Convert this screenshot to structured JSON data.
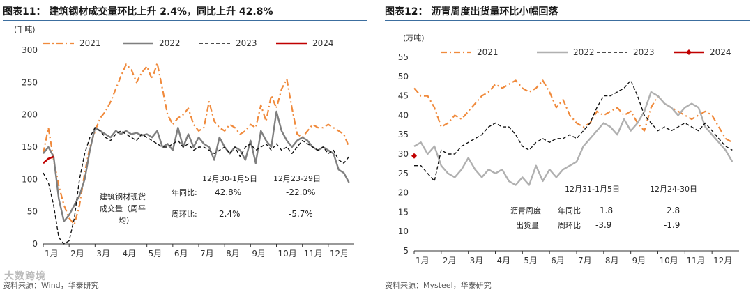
{
  "colors": {
    "s2021": "#f08a3c",
    "s2022": "#7f7f7f",
    "s2022_right": "#b0b0b0",
    "s2023": "#111111",
    "s2024": "#c00000",
    "rule": "#3c6e9f"
  },
  "left": {
    "figure_title": "图表11：  建筑钢材成交量环比上升 2.4%，同比上升 42.8%",
    "source": "资料来源：Wind，华泰研究"
  },
  "right": {
    "figure_title": "图表12：  沥青周度出货量环比小幅回落",
    "source": "资料来源：Mysteel，华泰研究"
  },
  "watermark": "大数跨境",
  "chart_data": [
    {
      "type": "line",
      "unit_label": "(千吨)",
      "ylim": [
        0,
        300
      ],
      "yticks": [
        0,
        50,
        100,
        150,
        200,
        250,
        300
      ],
      "xlim": [
        1,
        13
      ],
      "x_tick_labels": [
        "1月",
        "2月",
        "3月",
        "4月",
        "5月",
        "6月",
        "7月",
        "8月",
        "9月",
        "10月",
        "11月",
        "12月"
      ],
      "legend": [
        "2021",
        "2022",
        "2023",
        "2024"
      ],
      "series": [
        {
          "name": "2021",
          "style": "dashdot",
          "x": [
            1.0,
            1.2,
            1.4,
            1.6,
            1.8,
            2.0,
            2.2,
            2.4,
            2.6,
            2.8,
            3.0,
            3.2,
            3.4,
            3.6,
            3.8,
            4.0,
            4.2,
            4.4,
            4.6,
            4.8,
            5.0,
            5.2,
            5.4,
            5.6,
            5.8,
            6.0,
            6.2,
            6.4,
            6.6,
            6.8,
            7.0,
            7.2,
            7.4,
            7.6,
            7.8,
            8.0,
            8.2,
            8.4,
            8.6,
            8.8,
            9.0,
            9.2,
            9.4,
            9.6,
            9.8,
            10.0,
            10.2,
            10.4,
            10.6,
            10.8,
            11.0,
            11.2,
            11.4,
            11.6,
            11.8,
            12.0,
            12.2,
            12.4,
            12.6,
            12.8
          ],
          "y": [
            140,
            180,
            130,
            90,
            60,
            40,
            30,
            60,
            110,
            150,
            175,
            195,
            205,
            220,
            240,
            260,
            278,
            270,
            250,
            265,
            275,
            255,
            280,
            240,
            200,
            185,
            195,
            200,
            210,
            185,
            175,
            180,
            220,
            190,
            180,
            175,
            185,
            180,
            170,
            175,
            185,
            180,
            215,
            190,
            230,
            210,
            240,
            255,
            210,
            170,
            165,
            175,
            185,
            180,
            180,
            185,
            180,
            175,
            170,
            150
          ]
        },
        {
          "name": "2022",
          "style": "solid",
          "x": [
            1.0,
            1.2,
            1.4,
            1.6,
            1.8,
            2.0,
            2.2,
            2.4,
            2.6,
            2.8,
            3.0,
            3.2,
            3.4,
            3.6,
            3.8,
            4.0,
            4.2,
            4.4,
            4.6,
            4.8,
            5.0,
            5.2,
            5.4,
            5.6,
            5.8,
            6.0,
            6.2,
            6.4,
            6.6,
            6.8,
            7.0,
            7.2,
            7.4,
            7.6,
            7.8,
            8.0,
            8.2,
            8.4,
            8.6,
            8.8,
            9.0,
            9.2,
            9.4,
            9.6,
            9.8,
            10.0,
            10.2,
            10.4,
            10.6,
            10.8,
            11.0,
            11.2,
            11.4,
            11.6,
            11.8,
            12.0,
            12.2,
            12.4,
            12.6,
            12.8
          ],
          "y": [
            140,
            150,
            135,
            70,
            35,
            45,
            60,
            75,
            100,
            145,
            180,
            175,
            170,
            165,
            175,
            170,
            175,
            170,
            172,
            168,
            170,
            165,
            175,
            150,
            155,
            145,
            180,
            150,
            170,
            150,
            165,
            155,
            150,
            130,
            165,
            150,
            140,
            150,
            145,
            130,
            160,
            125,
            175,
            160,
            150,
            205,
            175,
            160,
            150,
            160,
            165,
            160,
            150,
            145,
            150,
            145,
            140,
            115,
            110,
            95
          ]
        },
        {
          "name": "2023",
          "style": "dashed",
          "x": [
            1.0,
            1.2,
            1.4,
            1.6,
            1.8,
            2.0,
            2.2,
            2.4,
            2.6,
            2.8,
            3.0,
            3.2,
            3.4,
            3.6,
            3.8,
            4.0,
            4.2,
            4.4,
            4.6,
            4.8,
            5.0,
            5.2,
            5.4,
            5.6,
            5.8,
            6.0,
            6.2,
            6.4,
            6.6,
            6.8,
            7.0,
            7.2,
            7.4,
            7.6,
            7.8,
            8.0,
            8.2,
            8.4,
            8.6,
            8.8,
            9.0,
            9.2,
            9.4,
            9.6,
            9.8,
            10.0,
            10.2,
            10.4,
            10.6,
            10.8,
            11.0,
            11.2,
            11.4,
            11.6,
            11.8,
            12.0,
            12.2,
            12.4,
            12.6,
            12.8
          ],
          "y": [
            110,
            95,
            60,
            10,
            -5,
            5,
            40,
            100,
            140,
            165,
            180,
            175,
            165,
            160,
            170,
            175,
            170,
            165,
            160,
            170,
            165,
            160,
            155,
            150,
            150,
            155,
            160,
            150,
            155,
            145,
            150,
            150,
            145,
            140,
            145,
            150,
            140,
            150,
            135,
            150,
            155,
            145,
            150,
            155,
            145,
            155,
            145,
            150,
            140,
            150,
            160,
            155,
            150,
            145,
            150,
            140,
            145,
            130,
            125,
            135
          ]
        },
        {
          "name": "2024",
          "style": "solid",
          "x": [
            1.0,
            1.2,
            1.4
          ],
          "y": [
            125,
            132,
            135
          ]
        }
      ],
      "annotation": {
        "col1_header": "12月30-1月5日",
        "col2_header": "12月23-29日",
        "row_label": "建筑钢材现货成交量（周平均）",
        "label_line1": "建筑钢材现货",
        "label_line2": "成交量（周平",
        "label_line3": "均）",
        "yoy_label": "年同比:",
        "wow_label": "周环比:",
        "yoy_col1": "42.8%",
        "yoy_col2": "-22.0%",
        "wow_col1": "2.4%",
        "wow_col2": "-5.7%"
      }
    },
    {
      "type": "line",
      "unit_label": "(万吨)",
      "ylim": [
        5,
        55
      ],
      "yticks": [
        5,
        10,
        15,
        20,
        25,
        30,
        35,
        40,
        45,
        50,
        55
      ],
      "xlim": [
        1,
        13
      ],
      "x_tick_labels": [
        "1月",
        "2月",
        "3月",
        "4月",
        "5月",
        "6月",
        "7月",
        "8月",
        "9月",
        "10月",
        "11月",
        "12月"
      ],
      "legend": [
        "2021",
        "2022",
        "2023",
        "2024"
      ],
      "series": [
        {
          "name": "2021",
          "style": "dashdot",
          "x": [
            1.0,
            1.25,
            1.5,
            1.75,
            2.0,
            2.25,
            2.5,
            2.75,
            3.0,
            3.25,
            3.5,
            3.75,
            4.0,
            4.25,
            4.5,
            4.75,
            5.0,
            5.25,
            5.5,
            5.75,
            6.0,
            6.25,
            6.5,
            6.75,
            7.0,
            7.25,
            7.5,
            7.75,
            8.0,
            8.25,
            8.5,
            8.75,
            9.0,
            9.25,
            9.5,
            9.75,
            10.0,
            10.25,
            10.5,
            10.75,
            11.0,
            11.25,
            11.5,
            11.75,
            12.0,
            12.25,
            12.5,
            12.75
          ],
          "y": [
            47,
            45,
            45,
            42,
            37,
            38,
            40,
            39,
            41,
            43,
            45,
            46,
            48,
            47,
            48,
            49,
            47,
            46,
            47,
            49,
            46,
            42,
            44,
            40,
            38,
            37,
            38,
            41,
            40,
            41,
            42,
            40,
            41,
            38,
            36,
            42,
            45,
            43,
            42,
            41,
            40,
            39,
            40,
            41,
            40,
            37,
            34,
            33
          ]
        },
        {
          "name": "2022",
          "style": "solid",
          "x": [
            1.0,
            1.25,
            1.5,
            1.75,
            2.0,
            2.25,
            2.5,
            2.75,
            3.0,
            3.25,
            3.5,
            3.75,
            4.0,
            4.25,
            4.5,
            4.75,
            5.0,
            5.25,
            5.5,
            5.75,
            6.0,
            6.25,
            6.5,
            6.75,
            7.0,
            7.25,
            7.5,
            7.75,
            8.0,
            8.25,
            8.5,
            8.75,
            9.0,
            9.25,
            9.5,
            9.75,
            10.0,
            10.25,
            10.5,
            10.75,
            11.0,
            11.25,
            11.5,
            11.75,
            12.0,
            12.25,
            12.5,
            12.75
          ],
          "y": [
            32,
            33,
            30,
            32,
            27,
            25,
            24,
            26,
            29,
            26,
            24,
            26,
            25,
            26,
            23,
            22,
            24,
            22,
            27,
            23,
            26,
            24,
            26,
            27,
            28,
            32,
            34,
            36,
            38,
            37,
            35,
            39,
            36,
            38,
            41,
            46,
            45,
            43,
            42,
            40,
            42,
            43,
            42,
            37,
            35,
            33,
            31,
            28
          ]
        },
        {
          "name": "2023",
          "style": "dashed",
          "x": [
            1.0,
            1.25,
            1.5,
            1.75,
            2.0,
            2.25,
            2.5,
            2.75,
            3.0,
            3.25,
            3.5,
            3.75,
            4.0,
            4.25,
            4.5,
            4.75,
            5.0,
            5.25,
            5.5,
            5.75,
            6.0,
            6.25,
            6.5,
            6.75,
            7.0,
            7.25,
            7.5,
            7.75,
            8.0,
            8.25,
            8.5,
            8.75,
            9.0,
            9.25,
            9.5,
            9.75,
            10.0,
            10.25,
            10.5,
            10.75,
            11.0,
            11.25,
            11.5,
            11.75,
            12.0,
            12.25,
            12.5,
            12.75
          ],
          "y": [
            27,
            27,
            25,
            23,
            31,
            30,
            30,
            32,
            33,
            34,
            35,
            37,
            38,
            37,
            37,
            35,
            32,
            31,
            33,
            34,
            33,
            34,
            34,
            35,
            34,
            36,
            38,
            42,
            45,
            45,
            46,
            47,
            49,
            45,
            40,
            38,
            36,
            37,
            36,
            37,
            38,
            37,
            36,
            38,
            36,
            34,
            32,
            31
          ]
        },
        {
          "name": "2024",
          "style": "solid_marker",
          "x": [
            1.0
          ],
          "y": [
            29.5
          ]
        }
      ],
      "annotation": {
        "col1_header": "12月31-1月5日",
        "col2_header": "12月24-30日",
        "row_label": "沥青周度出货量",
        "label_line1": "沥青周度",
        "label_line2": "出货量",
        "yoy_label": "年同比",
        "wow_label": "周环比",
        "yoy_col1": "1.8",
        "yoy_col2": "2.8",
        "wow_col1": "-3.9",
        "wow_col2": "-1.9"
      }
    }
  ]
}
